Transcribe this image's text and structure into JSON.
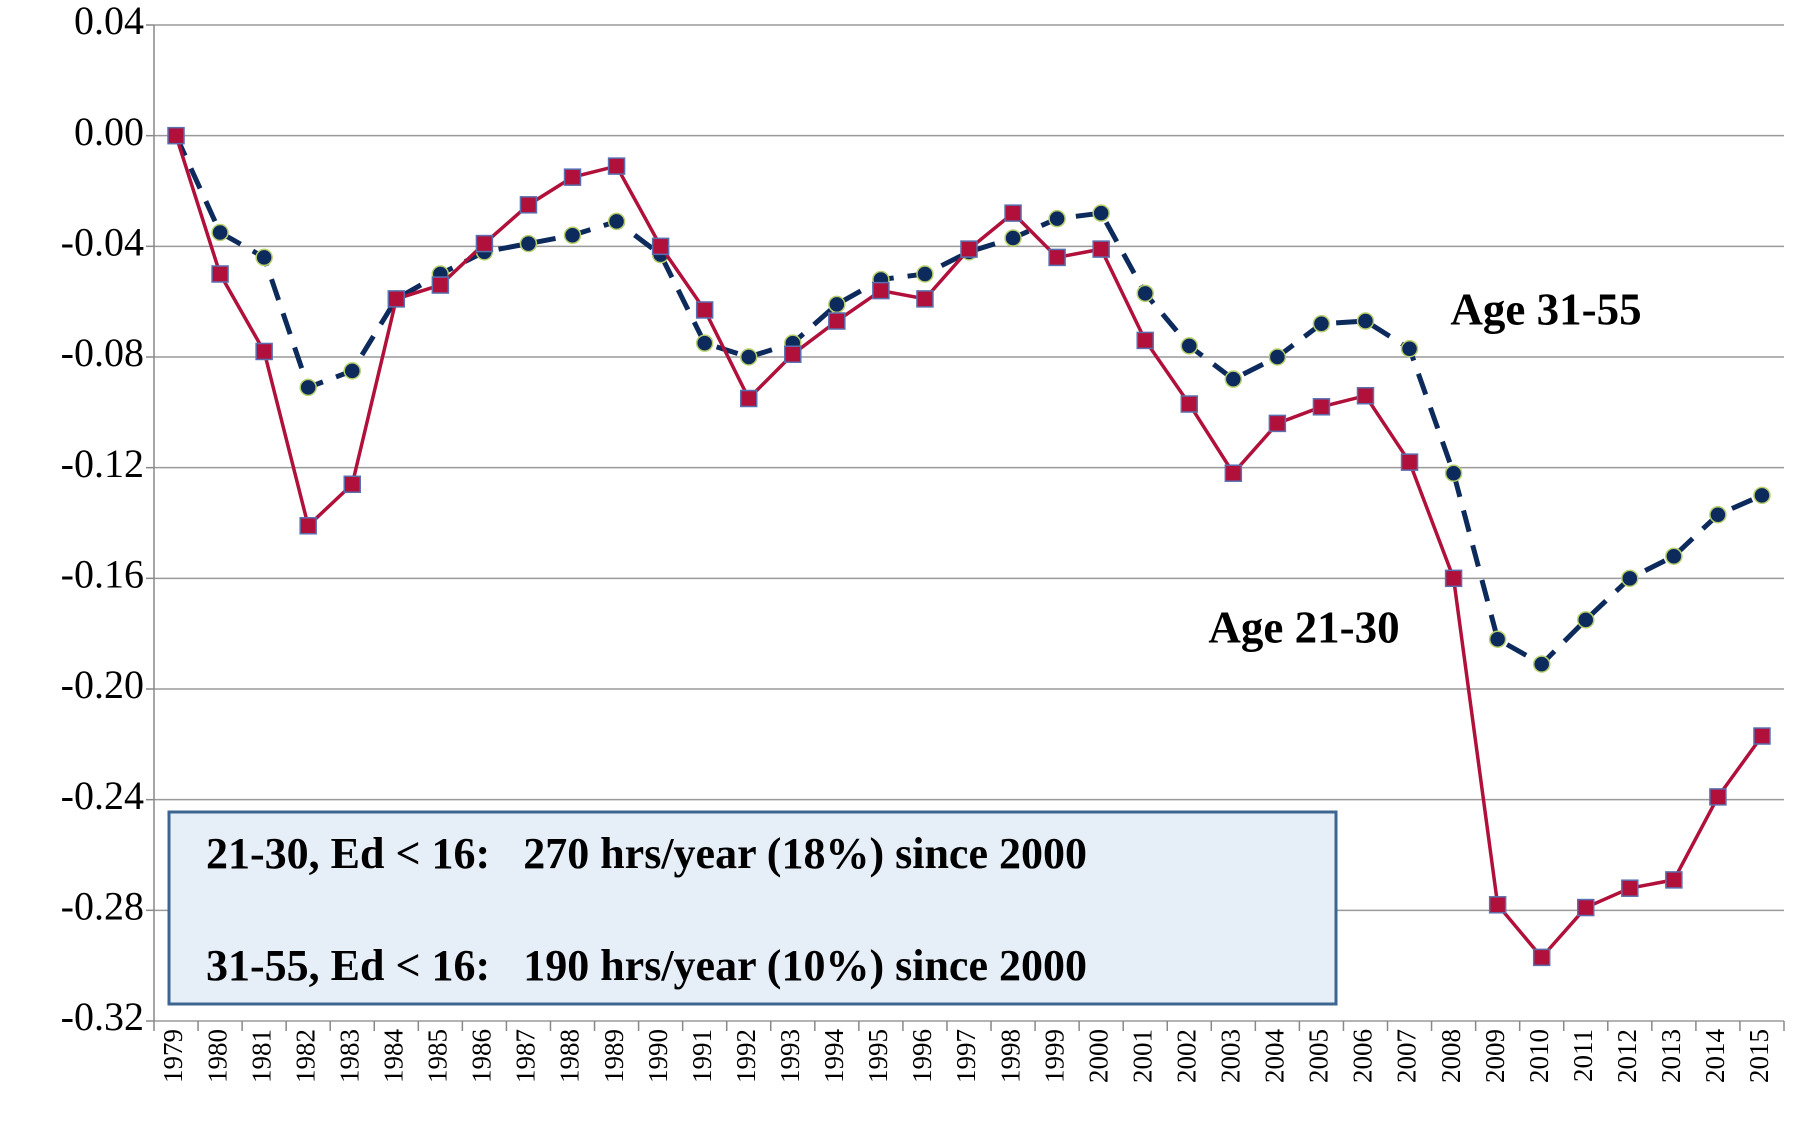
{
  "chart_data": {
    "type": "line",
    "categories": [
      "1979",
      "1980",
      "1981",
      "1982",
      "1983",
      "1984",
      "1985",
      "1986",
      "1987",
      "1988",
      "1989",
      "1990",
      "1991",
      "1992",
      "1993",
      "1994",
      "1995",
      "1996",
      "1997",
      "1998",
      "1999",
      "2000",
      "2001",
      "2002",
      "2003",
      "2004",
      "2005",
      "2006",
      "2007",
      "2008",
      "2009",
      "2010",
      "2011",
      "2012",
      "2013",
      "2014",
      "2015"
    ],
    "series": [
      {
        "name": "Age 31-55",
        "color": "#0d2a5c",
        "values": [
          0,
          -0.035,
          -0.044,
          -0.091,
          -0.085,
          -0.059,
          -0.05,
          -0.042,
          -0.039,
          -0.036,
          -0.031,
          -0.043,
          -0.075,
          -0.08,
          -0.075,
          -0.061,
          -0.052,
          -0.05,
          -0.042,
          -0.037,
          -0.03,
          -0.028,
          -0.057,
          -0.076,
          -0.088,
          -0.08,
          -0.068,
          -0.067,
          -0.077,
          -0.122,
          -0.182,
          -0.191,
          -0.175,
          -0.16,
          -0.152,
          -0.137,
          -0.13
        ]
      },
      {
        "name": "Age 21-30",
        "color": "#b0103a",
        "values": [
          0,
          -0.05,
          -0.078,
          -0.141,
          -0.126,
          -0.059,
          -0.054,
          -0.039,
          -0.025,
          -0.015,
          -0.011,
          -0.04,
          -0.063,
          -0.095,
          -0.079,
          -0.067,
          -0.056,
          -0.059,
          -0.041,
          -0.028,
          -0.044,
          -0.041,
          -0.074,
          -0.097,
          -0.122,
          -0.104,
          -0.098,
          -0.094,
          -0.118,
          -0.16,
          -0.278,
          -0.297,
          -0.279,
          -0.272,
          -0.269,
          -0.239,
          -0.217
        ]
      }
    ],
    "ylim": [
      -0.32,
      0.04
    ],
    "yticks": [
      0.04,
      {
        "value": 0,
        "label": "0.00"
      },
      -0.04,
      -0.08,
      -0.12,
      -0.16,
      {
        "value": -0.2,
        "label": "-0.20"
      },
      -0.24,
      -0.28,
      -0.32
    ],
    "grid": true,
    "annotations": [
      "21-30, Ed < 16:   270 hrs/year (18%) since 2000",
      "31-55, Ed < 16:   190 hrs/year (10%) since 2000"
    ]
  }
}
